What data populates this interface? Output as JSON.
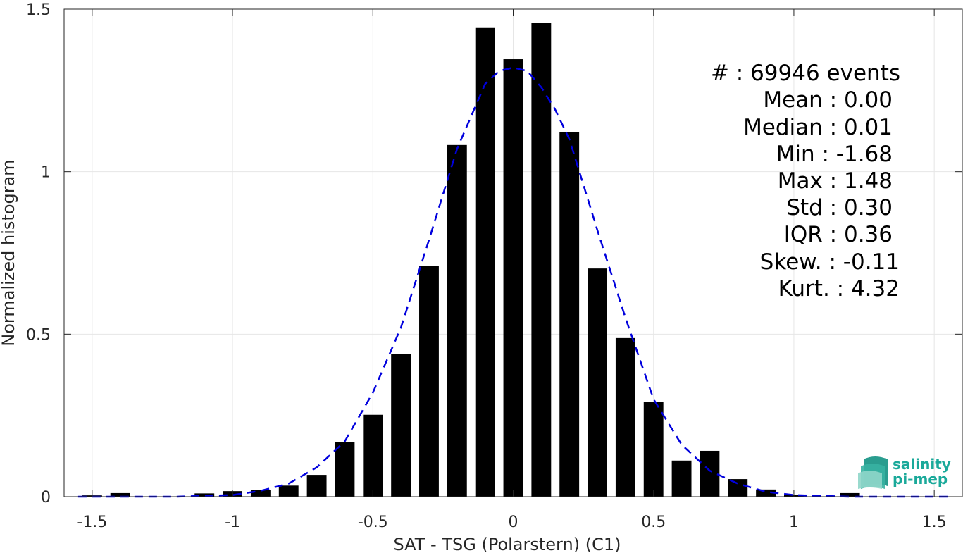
{
  "chart_data": {
    "type": "bar",
    "title": "",
    "xlabel": "SAT - TSG (Polarstern) (C1)",
    "ylabel": "Normalized histogram",
    "xlim": [
      -1.6,
      1.6
    ],
    "ylim": [
      0,
      1.5
    ],
    "bar_width": 0.07,
    "x_ticks": [
      "-1.5",
      "-1",
      "-0.5",
      "0",
      "0.5",
      "1",
      "1.5"
    ],
    "x_tick_values": [
      -1.5,
      -1,
      -0.5,
      0,
      0.5,
      1,
      1.5
    ],
    "y_ticks": [
      "0",
      "0.5",
      "1",
      "1.5"
    ],
    "y_tick_values": [
      0,
      0.5,
      1,
      1.5
    ],
    "grid": true,
    "colors": {
      "bars": "#000000",
      "fit": "#0000dd",
      "grid": "#e6e6e6",
      "axis": "#262626"
    },
    "bars": {
      "x": [
        -1.5,
        -1.4,
        -1.3,
        -1.2,
        -1.1,
        -1.0,
        -0.9,
        -0.8,
        -0.7,
        -0.6,
        -0.5,
        -0.4,
        -0.3,
        -0.2,
        -0.1,
        0.0,
        0.1,
        0.2,
        0.3,
        0.4,
        0.5,
        0.6,
        0.7,
        0.8,
        0.9,
        1.0,
        1.1,
        1.2,
        1.3,
        1.4,
        1.5
      ],
      "values": [
        0.004,
        0.011,
        0.0,
        0.0,
        0.01,
        0.017,
        0.021,
        0.034,
        0.067,
        0.167,
        0.252,
        0.438,
        0.709,
        1.082,
        1.442,
        1.346,
        1.458,
        1.122,
        0.702,
        0.488,
        0.292,
        0.111,
        0.141,
        0.054,
        0.022,
        0.005,
        0.0,
        0.011,
        0.0,
        0.0,
        0.0
      ]
    },
    "fit": {
      "style": "dashed",
      "x": [
        -1.55,
        -1.4,
        -1.2,
        -1.0,
        -0.9,
        -0.8,
        -0.7,
        -0.6,
        -0.5,
        -0.4,
        -0.3,
        -0.2,
        -0.15,
        -0.1,
        -0.05,
        0.0,
        0.05,
        0.1,
        0.15,
        0.2,
        0.3,
        0.4,
        0.5,
        0.6,
        0.7,
        0.8,
        0.9,
        1.0,
        1.2,
        1.4,
        1.55
      ],
      "values": [
        0.0,
        0.0,
        0.0,
        0.005,
        0.018,
        0.04,
        0.09,
        0.17,
        0.32,
        0.52,
        0.79,
        1.07,
        1.17,
        1.27,
        1.31,
        1.32,
        1.31,
        1.26,
        1.19,
        1.1,
        0.82,
        0.55,
        0.3,
        0.16,
        0.08,
        0.04,
        0.015,
        0.005,
        0.0,
        0.0,
        0.0
      ]
    }
  },
  "stats": [
    "#  : 69946 events",
    "Mean : 0.00",
    "Median : 0.01",
    "Min : -1.68",
    "Max : 1.48",
    "Std : 0.30",
    "IQR : 0.36",
    "Skew. : -0.11",
    "Kurt. : 4.32"
  ],
  "logo": {
    "line1": "salinity",
    "line2": "pi-mep"
  }
}
